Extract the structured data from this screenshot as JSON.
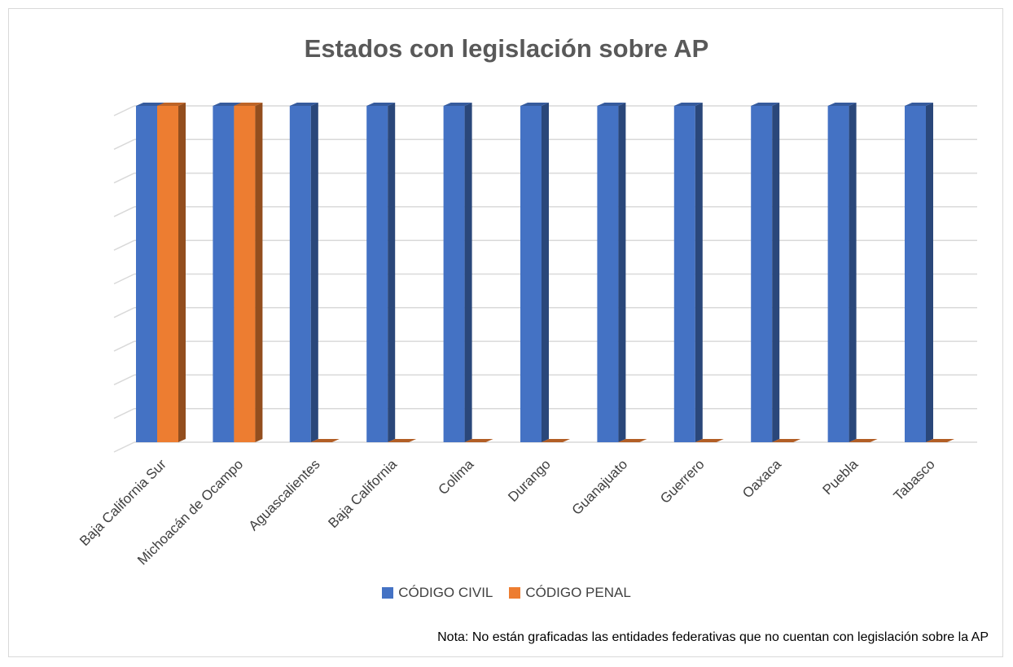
{
  "chart_data": {
    "type": "bar",
    "title": "Estados con legislación sobre AP",
    "categories": [
      "Baja California Sur",
      "Michoacán de Ocampo",
      "Aguascalientes",
      "Baja California",
      "Colima",
      "Durango",
      "Guanajuato",
      "Guerrero",
      "Oaxaca",
      "Puebla",
      "Tabasco"
    ],
    "series": [
      {
        "name": "CÓDIGO CIVIL",
        "color": "#4472c4",
        "values": [
          1,
          1,
          1,
          1,
          1,
          1,
          1,
          1,
          1,
          1,
          1
        ]
      },
      {
        "name": "CÓDIGO PENAL",
        "color": "#ed7d31",
        "values": [
          1,
          1,
          0,
          0,
          0,
          0,
          0,
          0,
          0,
          0,
          0
        ]
      }
    ],
    "ylim": [
      0,
      1
    ],
    "grid": true,
    "legend_position": "bottom",
    "note": "Nota: No están graficadas las entidades federativas que no cuentan con legislación sobre la AP"
  }
}
